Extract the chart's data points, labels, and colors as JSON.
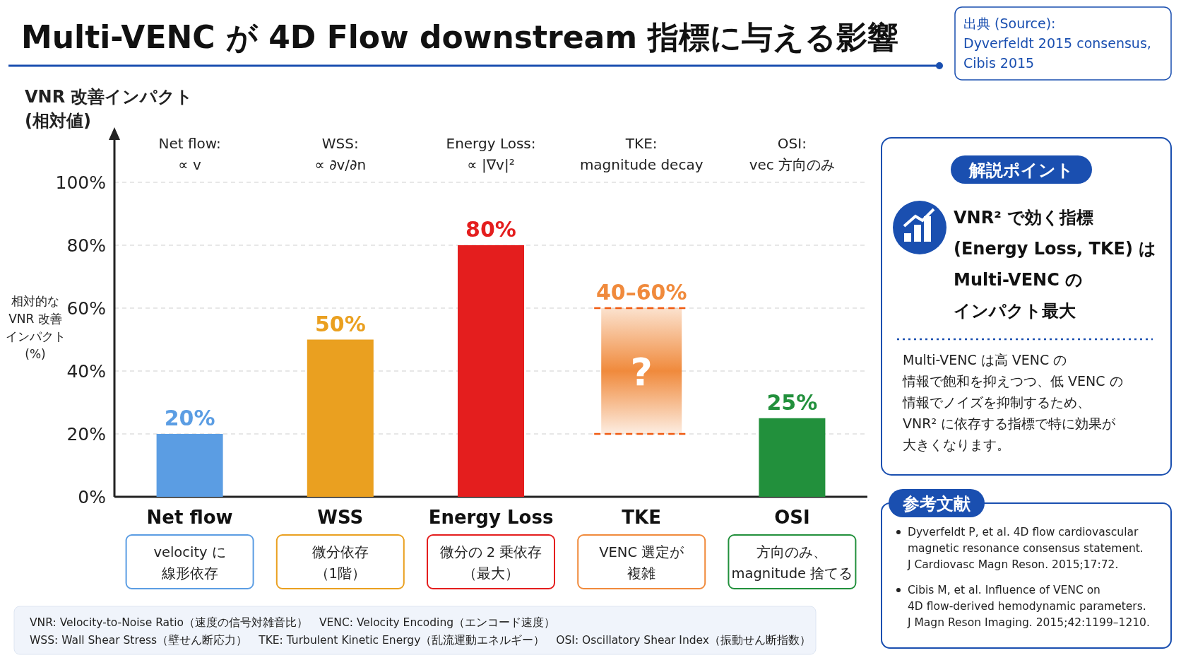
{
  "chart_data": {
    "type": "bar",
    "title": "Multi-VENC が 4D Flow downstream 指標に与える影響",
    "ylabel": "VNR 改善インパクト\n(相対値)",
    "categories": [
      "Net flow",
      "WSS",
      "Energy Loss",
      "TKE",
      "OSI"
    ],
    "values": [
      20,
      50,
      80,
      40,
      25
    ],
    "base": [
      0,
      0,
      0,
      20,
      0
    ],
    "colors": [
      "#5b9de3",
      "#eaa020",
      "#e41e1e",
      "#f08a3c",
      "#22903c"
    ],
    "value_labels": [
      "20%",
      "50%",
      "80%",
      "40–60%",
      "25%"
    ],
    "ylim": [
      0,
      100
    ],
    "yticks": [
      {
        "value": 0,
        "label": "0%"
      },
      {
        "value": 20,
        "label": "20%"
      },
      {
        "value": 40,
        "label": "40%"
      },
      {
        "value": 60,
        "label": "60%"
      },
      {
        "value": 80,
        "label": "80%"
      },
      {
        "value": 100,
        "label": "100%"
      }
    ],
    "grid": "y",
    "annotations": [
      "Net flow:\n∝ v",
      "WSS:\n∝ ∂v/∂n",
      "Energy Loss:\n∝ |∇v|²",
      "TKE:\nmagnitude decay",
      "OSI:\nvec 方向のみ",
      "velocity に",
      "線形依存",
      "微分依存",
      "（1階）",
      "微分の 2 乗依存",
      "（最大）",
      "VENC 選定が",
      "複雑",
      "方向のみ、",
      "magnitude 捨てる",
      "?",
      "相対的な",
      "VNR 改善",
      "インパクト",
      "(%)",
      "出典 (Source):\nDyverfeldt 2015 consensus,\nCibis 2015",
      "解説ポイント",
      "VNR² で効く指標",
      "(Energy Loss, TKE) は",
      "Multi-VENC の",
      "インパクト最大",
      "Multi-VENC は高 VENC の",
      "情報で飽和を抑えつつ、低 VENC の",
      "情報でノイズを抑制するため、",
      "VNR² に依存する指標で特に効果が",
      "大きくなります。",
      "参考文献",
      "Dyverfeldt P, et al. 4D flow cardiovascular\nmagnetic resonance consensus statement.\nJ Cardiovasc Magn Reson. 2015;17:72.",
      "Cibis M, et al. Influence of VENC on\n4D flow-derived hemodynamic parameters.\nJ Magn Reson Imaging. 2015;42:1199–1210.",
      "VNR: Velocity-to-Noise Ratio（速度の信号対雑音比）　VENC: Velocity Encoding（エンコード速度）\nWSS: Wall Shear Stress（壁せん断応力）　TKE: Turbulent Kinetic Energy（乱流運動エネルギー）　OSI: Oscillatory Shear Index（振動せん断指数）"
    ]
  }
}
